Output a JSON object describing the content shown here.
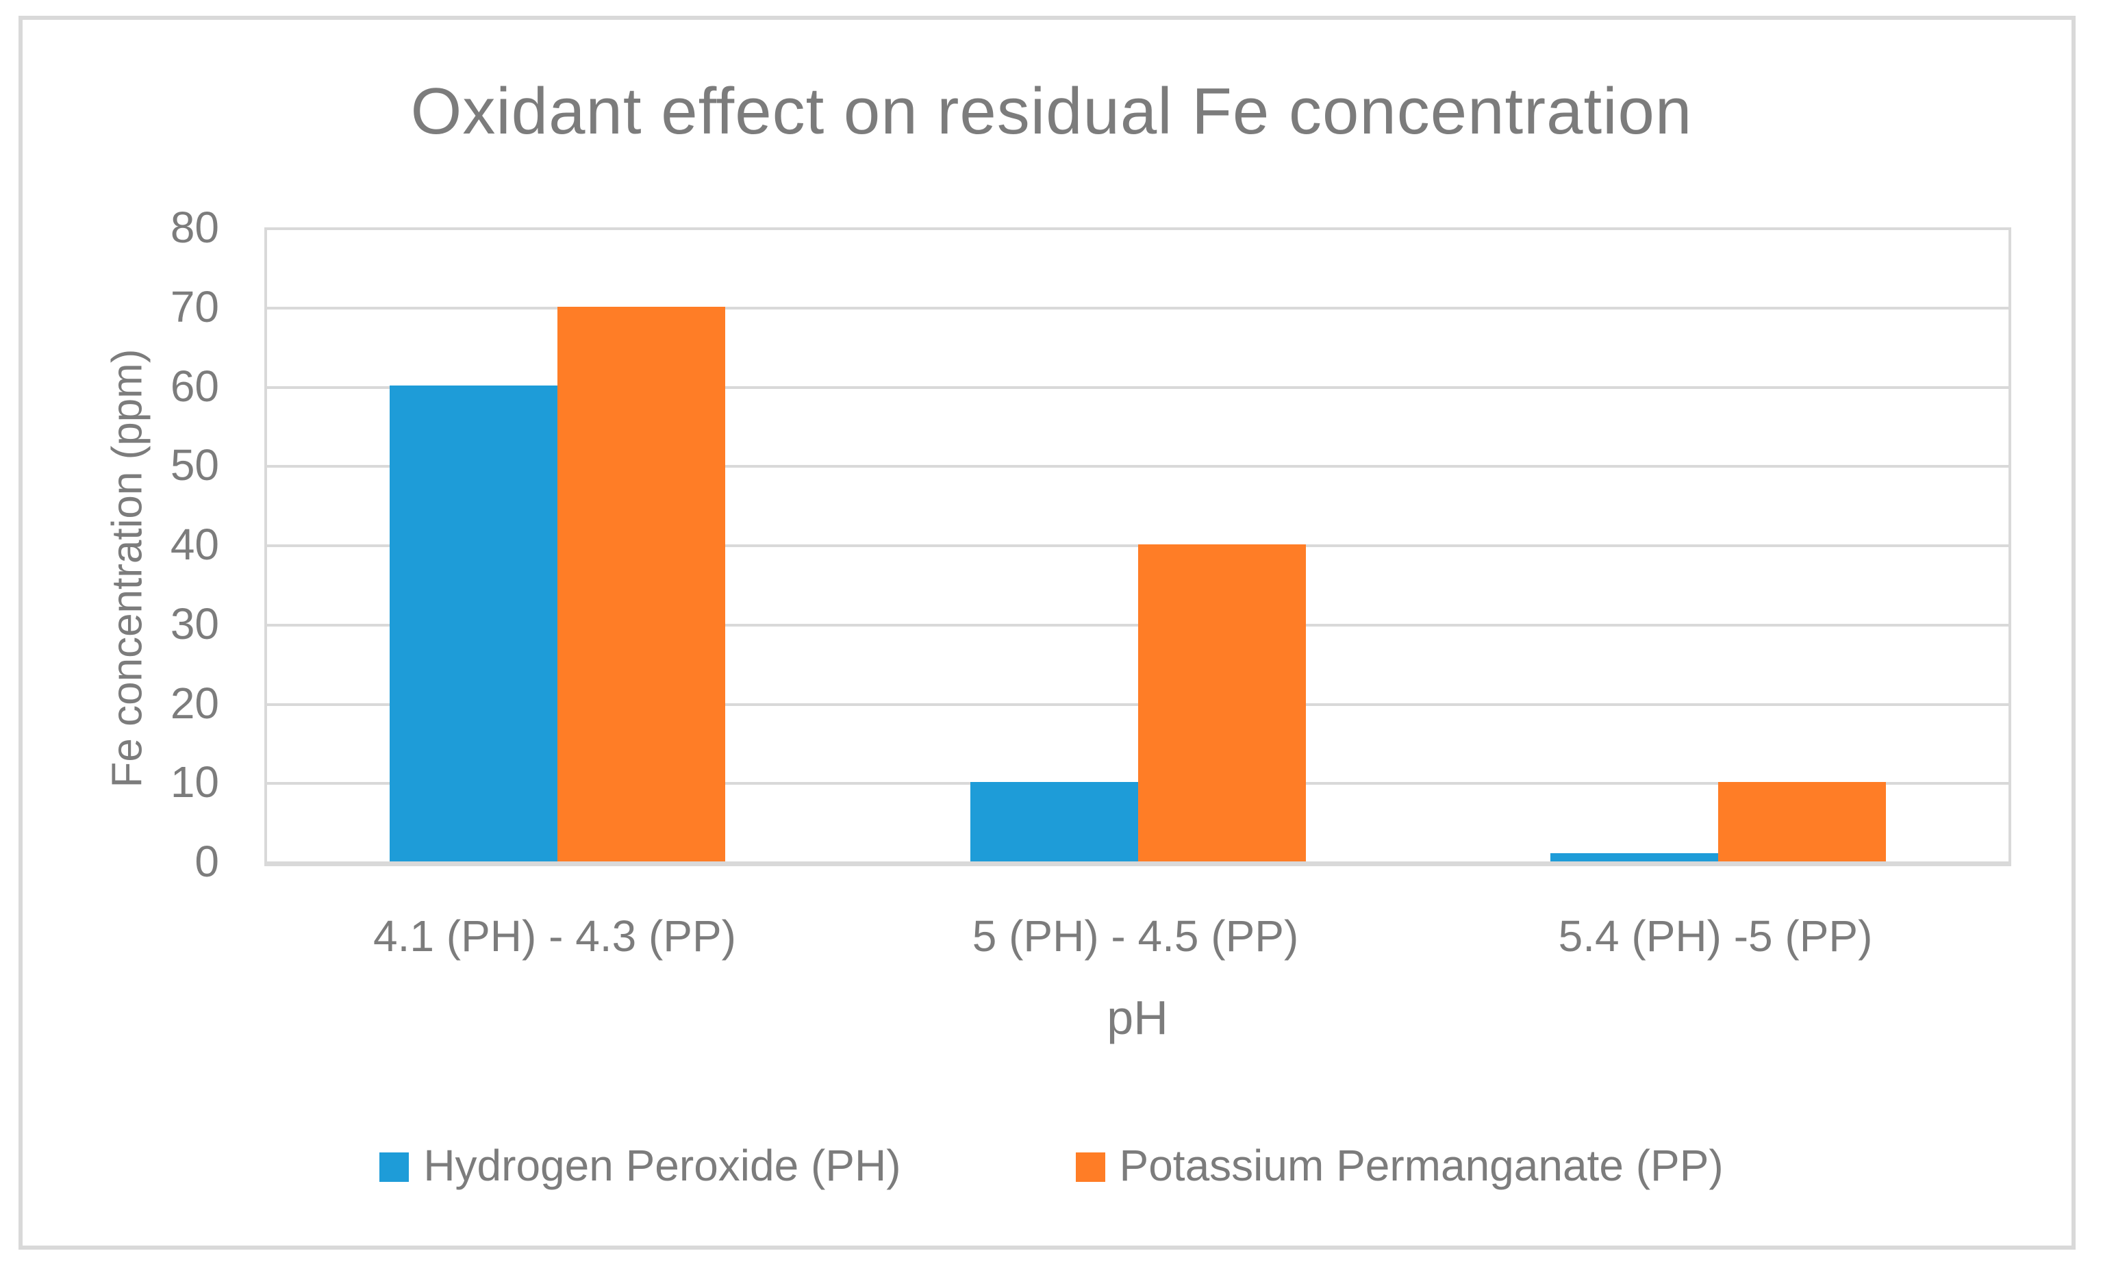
{
  "chart_data": {
    "type": "bar",
    "title": "Oxidant effect on residual Fe concentration",
    "xlabel": "pH",
    "ylabel": "Fe concentration (ppm)",
    "categories": [
      "4.1 (PH) - 4.3 (PP)",
      "5 (PH) - 4.5 (PP)",
      "5.4 (PH) -5 (PP)"
    ],
    "series": [
      {
        "name": "Hydrogen Peroxide (PH)",
        "color": "#1E9CD8",
        "values": [
          60,
          10,
          1
        ]
      },
      {
        "name": "Potassium Permanganate (PP)",
        "color": "#FF7D26",
        "values": [
          70,
          40,
          10
        ]
      }
    ],
    "ylim": [
      0,
      80
    ],
    "ytick_step": 10,
    "ytick_labels": [
      "0",
      "10",
      "20",
      "30",
      "40",
      "50",
      "60",
      "70",
      "80"
    ],
    "grid": true,
    "legend_position": "bottom"
  },
  "colors": {
    "gridline": "#D9D9D9",
    "plot_border": "#D9D9D9",
    "chart_border": "#D9D9D9",
    "text": "#7C7C7C",
    "background": "#FFFFFF"
  }
}
